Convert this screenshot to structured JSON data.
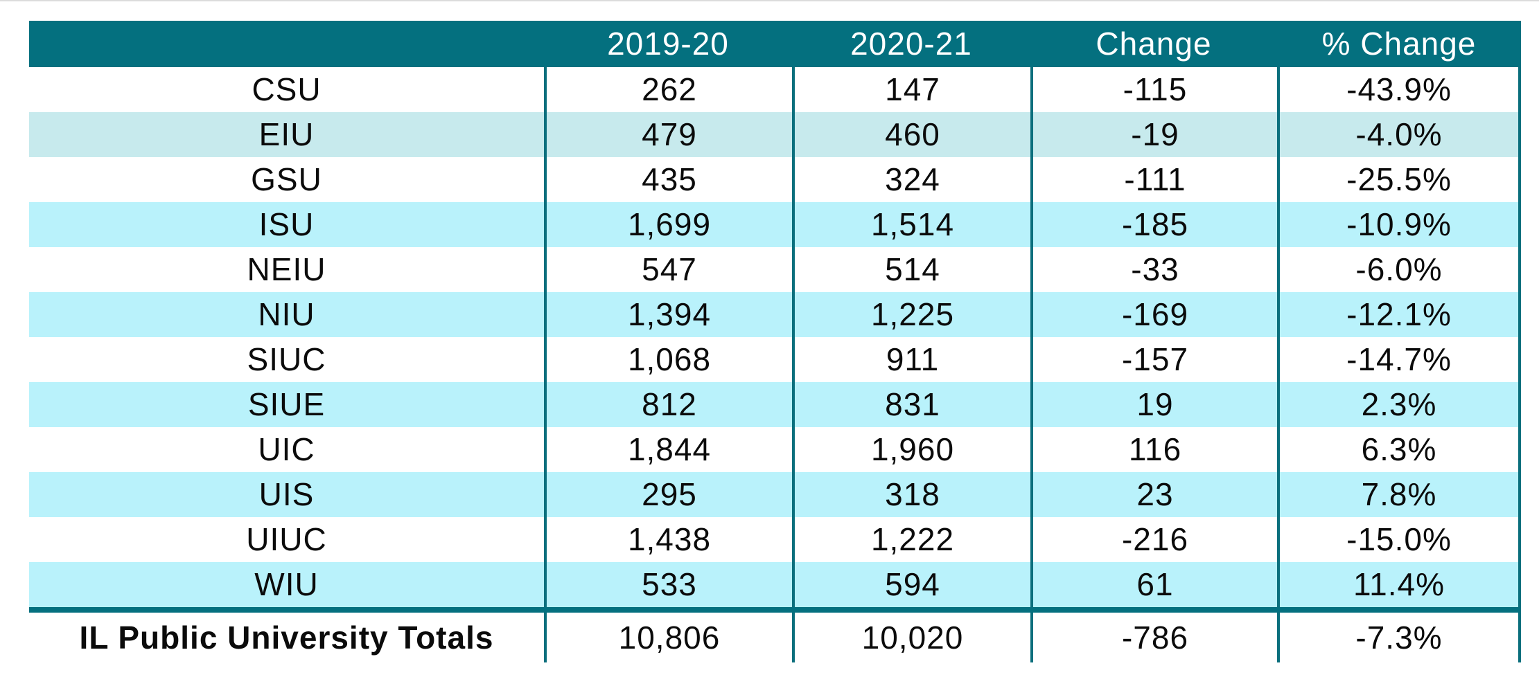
{
  "colors": {
    "header_teal": "#04707F",
    "divider_teal": "#0B6F7D",
    "band_cyan": "#B9F2FB",
    "band_pale_teal": "#C7EAED",
    "header_text": "#FFFFFF",
    "text": "#0B0B0B"
  },
  "table": {
    "columns": [
      "",
      "2019-20",
      "2020-21",
      "Change",
      "% Change"
    ],
    "rows": [
      {
        "name": "CSU",
        "y2019_20": "262",
        "y2020_21": "147",
        "change": "-115",
        "pct_change": "-43.9%"
      },
      {
        "name": "EIU",
        "y2019_20": "479",
        "y2020_21": "460",
        "change": "-19",
        "pct_change": "-4.0%"
      },
      {
        "name": "GSU",
        "y2019_20": "435",
        "y2020_21": "324",
        "change": "-111",
        "pct_change": "-25.5%"
      },
      {
        "name": "ISU",
        "y2019_20": "1,699",
        "y2020_21": "1,514",
        "change": "-185",
        "pct_change": "-10.9%"
      },
      {
        "name": "NEIU",
        "y2019_20": "547",
        "y2020_21": "514",
        "change": "-33",
        "pct_change": "-6.0%"
      },
      {
        "name": "NIU",
        "y2019_20": "1,394",
        "y2020_21": "1,225",
        "change": "-169",
        "pct_change": "-12.1%"
      },
      {
        "name": "SIUC",
        "y2019_20": "1,068",
        "y2020_21": "911",
        "change": "-157",
        "pct_change": "-14.7%"
      },
      {
        "name": "SIUE",
        "y2019_20": "812",
        "y2020_21": "831",
        "change": "19",
        "pct_change": "2.3%"
      },
      {
        "name": "UIC",
        "y2019_20": "1,844",
        "y2020_21": "1,960",
        "change": "116",
        "pct_change": "6.3%"
      },
      {
        "name": "UIS",
        "y2019_20": "295",
        "y2020_21": "318",
        "change": "23",
        "pct_change": "7.8%"
      },
      {
        "name": "UIUC",
        "y2019_20": "1,438",
        "y2020_21": "1,222",
        "change": "-216",
        "pct_change": "-15.0%"
      },
      {
        "name": "WIU",
        "y2019_20": "533",
        "y2020_21": "594",
        "change": "61",
        "pct_change": "11.4%"
      }
    ],
    "totals": {
      "name": "IL Public University Totals",
      "y2019_20": "10,806",
      "y2020_21": "10,020",
      "change": "-786",
      "pct_change": "-7.3%"
    }
  },
  "chart_data": {
    "type": "table",
    "title": "",
    "columns": [
      "",
      "2019-20",
      "2020-21",
      "Change",
      "% Change"
    ],
    "categories": [
      "CSU",
      "EIU",
      "GSU",
      "ISU",
      "NEIU",
      "NIU",
      "SIUC",
      "SIUE",
      "UIC",
      "UIS",
      "UIUC",
      "WIU"
    ],
    "series": [
      {
        "name": "2019-20",
        "values": [
          262,
          479,
          435,
          1699,
          547,
          1394,
          1068,
          812,
          1844,
          295,
          1438,
          533
        ]
      },
      {
        "name": "2020-21",
        "values": [
          147,
          460,
          324,
          1514,
          514,
          1225,
          911,
          831,
          1960,
          318,
          1222,
          594
        ]
      },
      {
        "name": "Change",
        "values": [
          -115,
          -19,
          -111,
          -185,
          -33,
          -169,
          -157,
          19,
          116,
          23,
          -216,
          61
        ]
      },
      {
        "name": "% Change",
        "values": [
          -43.9,
          -4.0,
          -25.5,
          -10.9,
          -6.0,
          -12.1,
          -14.7,
          2.3,
          6.3,
          7.8,
          -15.0,
          11.4
        ]
      }
    ],
    "totals_row": {
      "label": "IL Public University Totals",
      "values": [
        10806,
        10020,
        -786,
        -7.3
      ]
    }
  }
}
